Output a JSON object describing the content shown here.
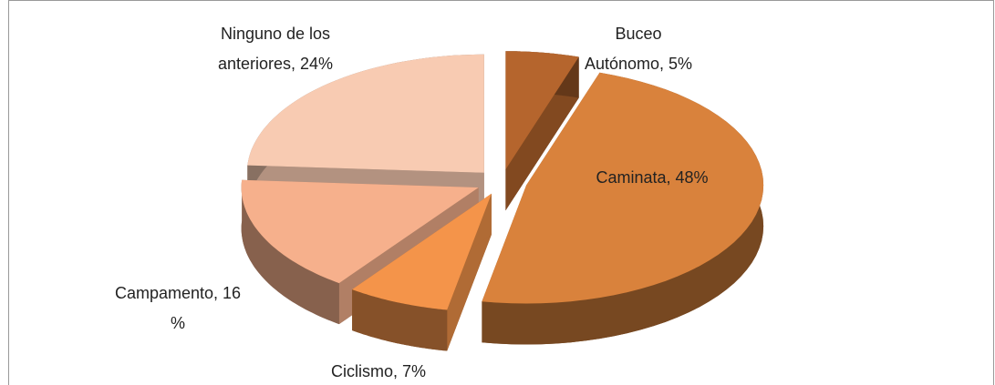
{
  "chart_data": {
    "type": "pie3d",
    "categories": [
      "Buceo Autónomo",
      "Caminata",
      "Ciclismo",
      "Campamento",
      "Ninguno de los anteriores"
    ],
    "values": [
      5,
      48,
      7,
      16,
      24
    ],
    "value_labels": [
      [
        "Buceo",
        "Autónomo, 5%"
      ],
      [
        "Caminata, 48%"
      ],
      [
        "Ciclismo, 7%"
      ],
      [
        "Campamento, 16",
        "%"
      ],
      [
        "Ninguno de los",
        "anteriores, 24%"
      ]
    ],
    "colors": [
      "#b5652d",
      "#d9823c",
      "#f4944a",
      "#f6b08c",
      "#f8cbb2"
    ]
  }
}
